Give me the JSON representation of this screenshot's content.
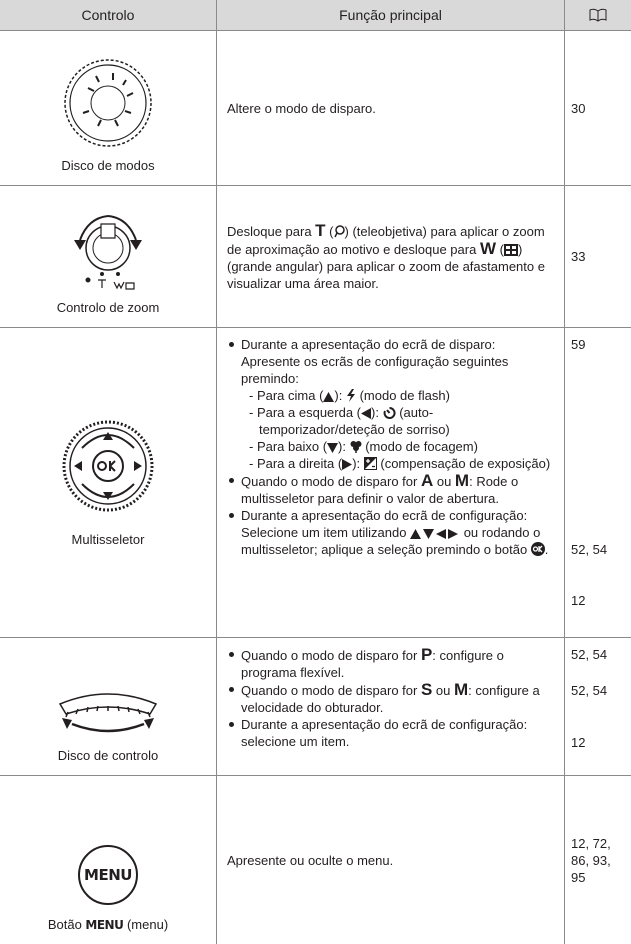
{
  "header": {
    "control": "Controlo",
    "function": "Função principal"
  },
  "rows": [
    {
      "control": "Disco de modos",
      "function": "Altere o modo de disparo.",
      "pages": "30"
    },
    {
      "control": "Controlo de zoom",
      "function": [
        "Desloque para ",
        "T",
        " (",
        ") (teleobjetiva) para aplicar o zoom de aproximação ao motivo e desloque para ",
        "W",
        " (",
        ") (grande angular) para aplicar o zoom de afastamento e visualizar uma área maior."
      ],
      "pages": "33"
    },
    {
      "control": "Multisseletor",
      "items": [
        {
          "text": "Durante a apresentação do ecrã de disparo: Apresente os ecrãs de configuração seguintes premindo:",
          "sub": [
            [
              "- Para cima (",
              "): ",
              " (modo de flash)"
            ],
            [
              "- Para a esquerda (",
              "): ",
              " (auto-temporizador/deteção de sorriso)"
            ],
            [
              "- Para baixo (",
              "): ",
              " (modo de focagem)"
            ],
            [
              "- Para a direita (",
              "): ",
              " (compensação de exposição)"
            ]
          ],
          "pages": "59"
        },
        {
          "text": [
            "Quando o modo de disparo for ",
            "A",
            " ou ",
            "M",
            ": Rode o multisseletor para definir o valor de abertura."
          ],
          "pages": "52, 54"
        },
        {
          "text": [
            "Durante a apresentação do ecrã de configuração: Selecione um item utilizando ",
            " ou rodando o multisseletor; aplique a seleção premindo o botão ",
            "."
          ],
          "pages": "12"
        }
      ]
    },
    {
      "control": "Disco de controlo",
      "items": [
        {
          "text": [
            "Quando o modo de disparo for ",
            "P",
            ": configure o programa flexível."
          ],
          "pages": "52, 54"
        },
        {
          "text": [
            "Quando o modo de disparo for ",
            "S",
            " ou ",
            "M",
            ": configure a velocidade do obturador."
          ],
          "pages": "52, 54"
        },
        {
          "text": "Durante a apresentação do ecrã de configuração: selecione um item.",
          "pages": "12"
        }
      ]
    },
    {
      "control": [
        "Botão ",
        "MENU",
        " (menu)"
      ],
      "button": "MENU",
      "function": "Apresente ou oculte o menu.",
      "pages": "12, 72, 86, 93, 95"
    }
  ]
}
